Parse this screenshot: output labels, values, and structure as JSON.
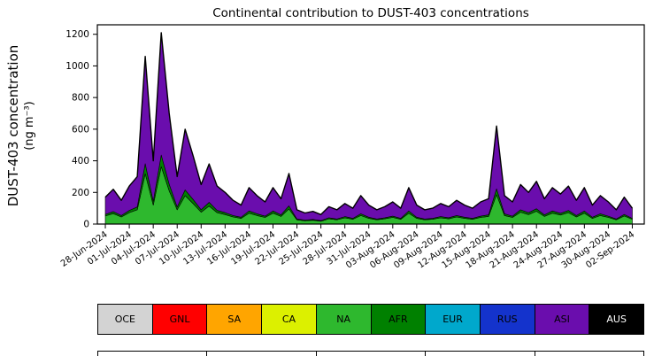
{
  "title": "Continental contribution to DUST-403 concentrations",
  "ylabel": {
    "line1": "DUST-403 concentration",
    "line2": "(ng m⁻³)"
  },
  "chart_data": {
    "type": "area",
    "stacked": true,
    "title": "Continental contribution to DUST-403 concentrations",
    "xlabel": "",
    "ylabel": "DUST-403 concentration (ng m⁻³)",
    "ylim": [
      0,
      1260
    ],
    "yticks": [
      0,
      200,
      400,
      600,
      800,
      1000,
      1200
    ],
    "grid": false,
    "legend_position": "below-as-table",
    "x_unit": "days since 28-Jun-2024 (daily estimates)",
    "x_days": [
      0,
      1,
      2,
      3,
      4,
      5,
      6,
      7,
      8,
      9,
      10,
      11,
      12,
      13,
      14,
      15,
      16,
      17,
      18,
      19,
      20,
      21,
      22,
      23,
      24,
      25,
      26,
      27,
      28,
      29,
      30,
      31,
      32,
      33,
      34,
      35,
      36,
      37,
      38,
      39,
      40,
      41,
      42,
      43,
      44,
      45,
      46,
      47,
      48,
      49,
      50,
      51,
      52,
      53,
      54,
      55,
      56,
      57,
      58,
      59,
      60,
      61,
      62,
      63,
      64,
      65,
      66
    ],
    "x_tick_days": [
      0,
      3,
      6,
      9,
      12,
      15,
      18,
      21,
      24,
      27,
      30,
      33,
      36,
      39,
      42,
      45,
      48,
      51,
      54,
      57,
      60,
      63,
      66
    ],
    "x_tick_labels": [
      "28-Jun-2024",
      "01-Jul-2024",
      "04-Jul-2024",
      "07-Jul-2024",
      "10-Jul-2024",
      "13-Jul-2024",
      "16-Jul-2024",
      "19-Jul-2024",
      "22-Jul-2024",
      "25-Jul-2024",
      "28-Jul-2024",
      "31-Jul-2024",
      "03-Aug-2024",
      "06-Aug-2024",
      "09-Aug-2024",
      "12-Aug-2024",
      "15-Aug-2024",
      "18-Aug-2024",
      "21-Aug-2024",
      "24-Aug-2024",
      "27-Aug-2024",
      "30-Aug-2024",
      "02-Sep-2024"
    ],
    "series": [
      {
        "name": "OCE",
        "color": "#d3d3d3",
        "values": []
      },
      {
        "name": "GNL",
        "color": "#ff0000",
        "values": []
      },
      {
        "name": "SA",
        "color": "#ffa500",
        "values": []
      },
      {
        "name": "CA",
        "color": "#dcf000",
        "values": []
      },
      {
        "name": "NA",
        "color": "#2eb82e",
        "values": [
          51,
          66,
          45,
          72,
          90,
          318,
          120,
          363,
          210,
          90,
          180,
          129,
          75,
          114,
          72,
          60,
          45,
          36,
          69,
          54,
          42,
          69,
          48,
          96,
          27,
          21,
          24,
          18,
          33,
          27,
          39,
          30,
          54,
          36,
          27,
          33,
          42,
          30,
          69,
          36,
          27,
          30,
          39,
          33,
          45,
          36,
          30,
          42,
          48,
          186,
          54,
          42,
          75,
          60,
          81,
          48,
          69,
          57,
          72,
          45,
          69,
          36,
          54,
          42,
          27,
          51,
          30
        ]
      },
      {
        "name": "AFR",
        "color": "#008000",
        "values": [
          10,
          13,
          9,
          14,
          18,
          64,
          24,
          73,
          42,
          18,
          36,
          26,
          15,
          23,
          14,
          12,
          9,
          7,
          14,
          11,
          8,
          14,
          10,
          19,
          5,
          4,
          5,
          4,
          7,
          5,
          8,
          6,
          11,
          7,
          5,
          7,
          8,
          6,
          14,
          7,
          5,
          6,
          8,
          7,
          9,
          7,
          6,
          8,
          10,
          37,
          11,
          8,
          15,
          12,
          16,
          10,
          14,
          11,
          14,
          9,
          14,
          7,
          11,
          8,
          5,
          10,
          6
        ]
      },
      {
        "name": "EUR",
        "color": "#00a8cc",
        "values": []
      },
      {
        "name": "RUS",
        "color": "#1433cc",
        "values": []
      },
      {
        "name": "ASI",
        "color": "#6a0dad",
        "values": [
          109,
          141,
          96,
          154,
          192,
          678,
          256,
          774,
          448,
          192,
          384,
          275,
          160,
          243,
          154,
          128,
          96,
          77,
          147,
          115,
          90,
          147,
          102,
          205,
          58,
          45,
          51,
          38,
          70,
          58,
          83,
          64,
          115,
          77,
          58,
          70,
          90,
          64,
          147,
          77,
          58,
          64,
          83,
          70,
          96,
          77,
          64,
          90,
          102,
          397,
          115,
          90,
          160,
          128,
          173,
          102,
          147,
          122,
          154,
          96,
          147,
          77,
          115,
          90,
          58,
          109,
          64
        ]
      },
      {
        "name": "AUS",
        "color": "#000000",
        "values": []
      }
    ],
    "total_line_color": "#000000"
  },
  "legend": {
    "items": [
      {
        "label": "OCE",
        "color": "#d3d3d3",
        "text_color": "#000000"
      },
      {
        "label": "GNL",
        "color": "#ff0000",
        "text_color": "#000000"
      },
      {
        "label": "SA",
        "color": "#ffa500",
        "text_color": "#000000"
      },
      {
        "label": "CA",
        "color": "#dcf000",
        "text_color": "#000000"
      },
      {
        "label": "NA",
        "color": "#2eb82e",
        "text_color": "#000000"
      },
      {
        "label": "AFR",
        "color": "#008000",
        "text_color": "#000000"
      },
      {
        "label": "EUR",
        "color": "#00a8cc",
        "text_color": "#000000"
      },
      {
        "label": "RUS",
        "color": "#1433cc",
        "text_color": "#000000"
      },
      {
        "label": "ASI",
        "color": "#6a0dad",
        "text_color": "#000000"
      },
      {
        "label": "AUS",
        "color": "#000000",
        "text_color": "#ffffff"
      }
    ]
  }
}
